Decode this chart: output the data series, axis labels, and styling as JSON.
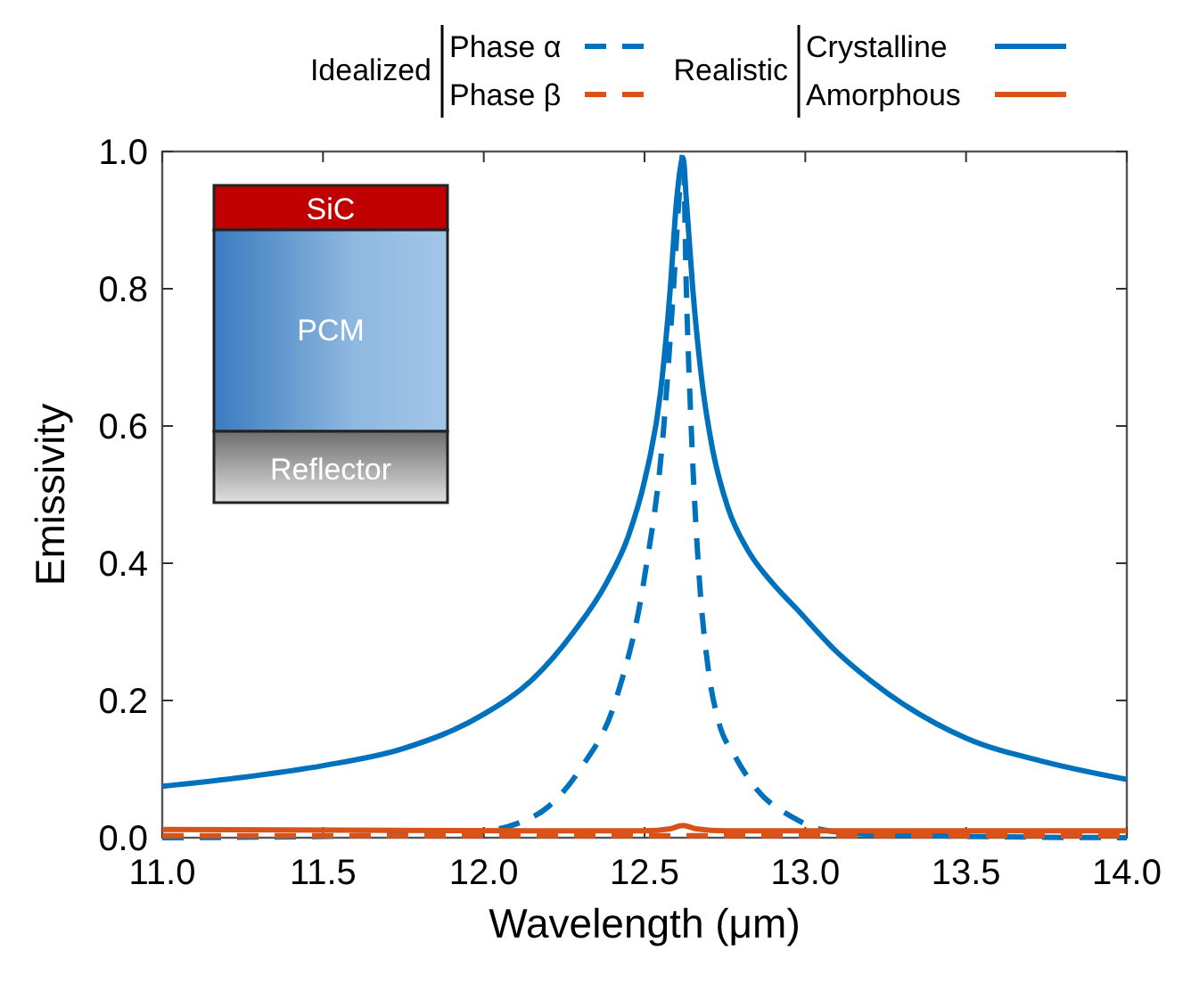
{
  "chart_data": {
    "type": "line",
    "xlabel": "Wavelength (μm)",
    "ylabel": "Emissivity",
    "xlim": [
      11,
      14
    ],
    "ylim": [
      0,
      1
    ],
    "xticks": [
      {
        "value": 11,
        "label": "11.0"
      },
      11.5,
      {
        "value": 12,
        "label": "12.0"
      },
      12.5,
      {
        "value": 13,
        "label": "13.0"
      },
      13.5,
      {
        "value": 14,
        "label": "14.0"
      }
    ],
    "yticks": [
      {
        "value": 0,
        "label": "0.0"
      },
      0.2,
      0.4,
      0.6,
      0.8,
      {
        "value": 1,
        "label": "1.0"
      }
    ],
    "legend": "top",
    "grid": false,
    "series": [
      {
        "name": "Phase α",
        "color": "#0072bd",
        "line_style": "dashed",
        "x": [
          11,
          11.5,
          12,
          12.1,
          12.2,
          12.3,
          12.41,
          12.5,
          12.56,
          12.59,
          12.61,
          12.62,
          12.63,
          12.645,
          12.67,
          12.7,
          12.73,
          12.78,
          12.85,
          12.96,
          13.05,
          13.2,
          13.5,
          14
        ],
        "values": [
          0,
          0.002,
          0.01,
          0.02,
          0.045,
          0.1,
          0.2,
          0.38,
          0.6,
          0.8,
          0.95,
          1.0,
          0.8,
          0.6,
          0.38,
          0.24,
          0.17,
          0.12,
          0.07,
          0.03,
          0.012,
          0.005,
          0.002,
          0
        ]
      },
      {
        "name": "Phase β",
        "color": "#d95319",
        "line_style": "dashed",
        "x": [
          11,
          14
        ],
        "values": [
          0.003,
          0.003
        ]
      },
      {
        "name": "Crystalline",
        "color": "#0072bd",
        "line_style": "solid",
        "x": [
          11,
          11.25,
          11.5,
          11.75,
          12,
          12.15,
          12.28,
          12.38,
          12.45,
          12.5,
          12.55,
          12.58,
          12.6,
          12.62,
          12.63,
          12.65,
          12.68,
          12.71,
          12.76,
          12.82,
          12.9,
          12.97,
          13.1,
          13.2,
          13.5,
          13.75,
          14
        ],
        "values": [
          0.075,
          0.088,
          0.105,
          0.13,
          0.18,
          0.23,
          0.3,
          0.37,
          0.44,
          0.52,
          0.65,
          0.8,
          0.93,
          0.99,
          0.93,
          0.8,
          0.66,
          0.57,
          0.48,
          0.42,
          0.37,
          0.335,
          0.27,
          0.23,
          0.145,
          0.11,
          0.085
        ]
      },
      {
        "name": "Amorphous",
        "color": "#d95319",
        "line_style": "solid",
        "x": [
          11,
          12.5,
          12.58,
          12.62,
          12.66,
          12.75,
          14
        ],
        "values": [
          0.012,
          0.01,
          0.013,
          0.018,
          0.013,
          0.01,
          0.01
        ]
      }
    ],
    "annotations": [
      "Idealized",
      "Realistic",
      "SiC",
      "PCM",
      "Reflector"
    ]
  }
}
